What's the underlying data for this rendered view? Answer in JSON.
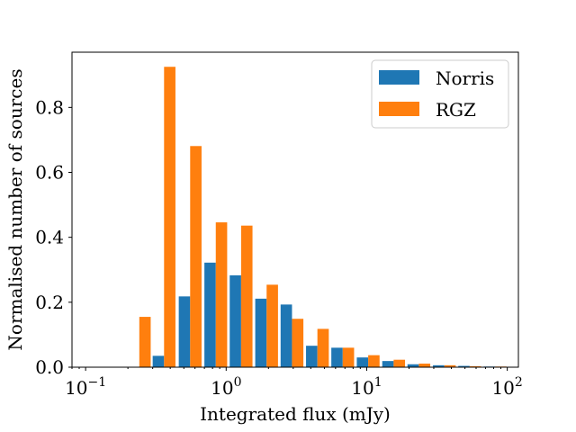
{
  "chart_data": {
    "type": "bar",
    "title": "",
    "xlabel": "Integrated flux (mJy)",
    "ylabel": "Normalised number of sources",
    "xscale": "log",
    "xlim": [
      0.08,
      120
    ],
    "ylim": [
      0,
      0.97
    ],
    "xticks": [
      {
        "value": 0.1,
        "base": "10",
        "exp": "−1"
      },
      {
        "value": 1,
        "base": "10",
        "exp": "0"
      },
      {
        "value": 10,
        "base": "10",
        "exp": "1"
      },
      {
        "value": 100,
        "base": "10",
        "exp": "2"
      }
    ],
    "yticks": [
      "0.0",
      "0.2",
      "0.4",
      "0.6",
      "0.8"
    ],
    "ytick_values": [
      0,
      0.2,
      0.4,
      0.6,
      0.8
    ],
    "bins": [
      0.2,
      0.3,
      0.46,
      0.7,
      1.06,
      1.61,
      2.44,
      3.7,
      5.6,
      8.5,
      12.9,
      19.5,
      29.6,
      44.8,
      68
    ],
    "series": [
      {
        "name": "Norris",
        "color": "#1f77b4",
        "values": [
          0,
          0.035,
          0.218,
          0.322,
          0.283,
          0.211,
          0.193,
          0.066,
          0.06,
          0.03,
          0.019,
          0.009,
          0.006,
          0.004,
          0.002
        ]
      },
      {
        "name": "RGZ",
        "color": "#ff7f0e",
        "values": [
          0.155,
          0.925,
          0.681,
          0.446,
          0.436,
          0.254,
          0.149,
          0.118,
          0.06,
          0.037,
          0.023,
          0.011,
          0.006,
          0.003,
          0.002
        ]
      }
    ],
    "legend_position": "top-right",
    "grid": false
  }
}
